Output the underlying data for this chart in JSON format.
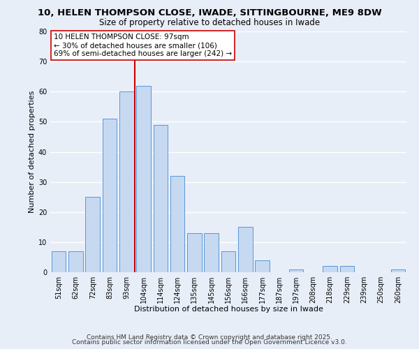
{
  "title": "10, HELEN THOMPSON CLOSE, IWADE, SITTINGBOURNE, ME9 8DW",
  "subtitle": "Size of property relative to detached houses in Iwade",
  "xlabel": "Distribution of detached houses by size in Iwade",
  "ylabel": "Number of detached properties",
  "bar_labels": [
    "51sqm",
    "62sqm",
    "72sqm",
    "83sqm",
    "93sqm",
    "104sqm",
    "114sqm",
    "124sqm",
    "135sqm",
    "145sqm",
    "156sqm",
    "166sqm",
    "177sqm",
    "187sqm",
    "197sqm",
    "208sqm",
    "218sqm",
    "229sqm",
    "239sqm",
    "250sqm",
    "260sqm"
  ],
  "bar_values": [
    7,
    7,
    25,
    51,
    60,
    62,
    49,
    32,
    13,
    13,
    7,
    15,
    4,
    0,
    1,
    0,
    2,
    2,
    0,
    0,
    1
  ],
  "bar_color": "#c6d9f1",
  "bar_edge_color": "#5a96d8",
  "vline_x": 4.5,
  "vline_color": "#cc0000",
  "annotation_text": "10 HELEN THOMPSON CLOSE: 97sqm\n← 30% of detached houses are smaller (106)\n69% of semi-detached houses are larger (242) →",
  "annotation_box_color": "#ffffff",
  "annotation_box_edge": "#cc0000",
  "ylim": [
    0,
    80
  ],
  "yticks": [
    0,
    10,
    20,
    30,
    40,
    50,
    60,
    70,
    80
  ],
  "footer_line1": "Contains HM Land Registry data © Crown copyright and database right 2025.",
  "footer_line2": "Contains public sector information licensed under the Open Government Licence v3.0.",
  "bg_color": "#e8eef8",
  "grid_color": "#ffffff",
  "title_fontsize": 9.5,
  "subtitle_fontsize": 8.5,
  "axis_label_fontsize": 8,
  "tick_fontsize": 7,
  "annotation_fontsize": 7.5,
  "footer_fontsize": 6.5
}
